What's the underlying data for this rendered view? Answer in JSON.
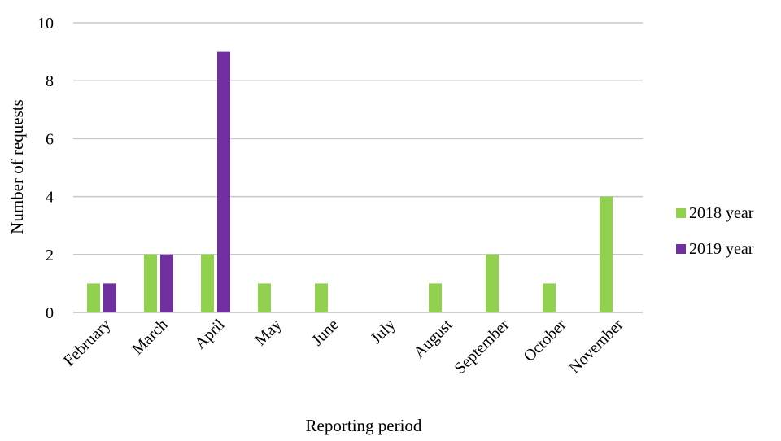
{
  "chart_data": {
    "type": "bar",
    "title": "",
    "xlabel": "Reporting period",
    "ylabel": "Number of requests",
    "ylim": [
      0,
      10
    ],
    "yticks": [
      0,
      2,
      4,
      6,
      8,
      10
    ],
    "grid": true,
    "legend_position": "right",
    "categories": [
      "February",
      "March",
      "April",
      "May",
      "June",
      "July",
      "August",
      "September",
      "October",
      "November"
    ],
    "series": [
      {
        "name": "2018 year",
        "color": "#92d050",
        "values": [
          1,
          2,
          2,
          1,
          1,
          0,
          1,
          2,
          1,
          4
        ]
      },
      {
        "name": "2019 year",
        "color": "#7030a0",
        "values": [
          1,
          2,
          9,
          0,
          0,
          0,
          0,
          0,
          0,
          0
        ]
      }
    ]
  }
}
